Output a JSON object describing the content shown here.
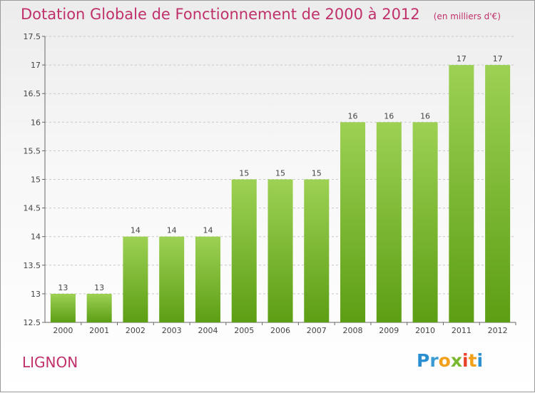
{
  "title": "Dotation Globale de Fonctionnement de 2000 à 2012",
  "unit_note": "(en milliers d'€)",
  "commune": "LIGNON",
  "brand": {
    "letters": [
      "P",
      "r",
      "o",
      "x",
      "i",
      "t",
      "i"
    ],
    "colors": [
      "#2a8fd0",
      "#3a9bd5",
      "#f2a01a",
      "#7ab82e",
      "#e8432a",
      "#f2a01a",
      "#2a8fd0"
    ]
  },
  "colors": {
    "bar_light": "#9dd154",
    "bar_dark": "#5c9e14",
    "accent": "#c0306a",
    "grid": "#c8c8c8"
  },
  "chart_data": {
    "type": "bar",
    "categories": [
      "2000",
      "2001",
      "2002",
      "2003",
      "2004",
      "2005",
      "2006",
      "2007",
      "2008",
      "2009",
      "2010",
      "2011",
      "2012"
    ],
    "values": [
      13,
      13,
      14,
      14,
      14,
      15,
      15,
      15,
      16,
      16,
      16,
      17,
      17
    ],
    "data_labels": [
      "13",
      "13",
      "14",
      "14",
      "14",
      "15",
      "15",
      "15",
      "16",
      "16",
      "16",
      "17",
      "17"
    ],
    "ylim": [
      12.5,
      17.5
    ],
    "yticks": [
      12.5,
      13,
      13.5,
      14,
      14.5,
      15,
      15.5,
      16,
      16.5,
      17,
      17.5
    ],
    "ytick_labels": [
      "12.5",
      "13",
      "13.5",
      "14",
      "14.5",
      "15",
      "15.5",
      "16",
      "16.5",
      "17",
      "17.5"
    ],
    "grid": "horizontal dashed",
    "title": "Dotation Globale de Fonctionnement de 2000 à 2012",
    "xlabel": "",
    "ylabel": ""
  }
}
